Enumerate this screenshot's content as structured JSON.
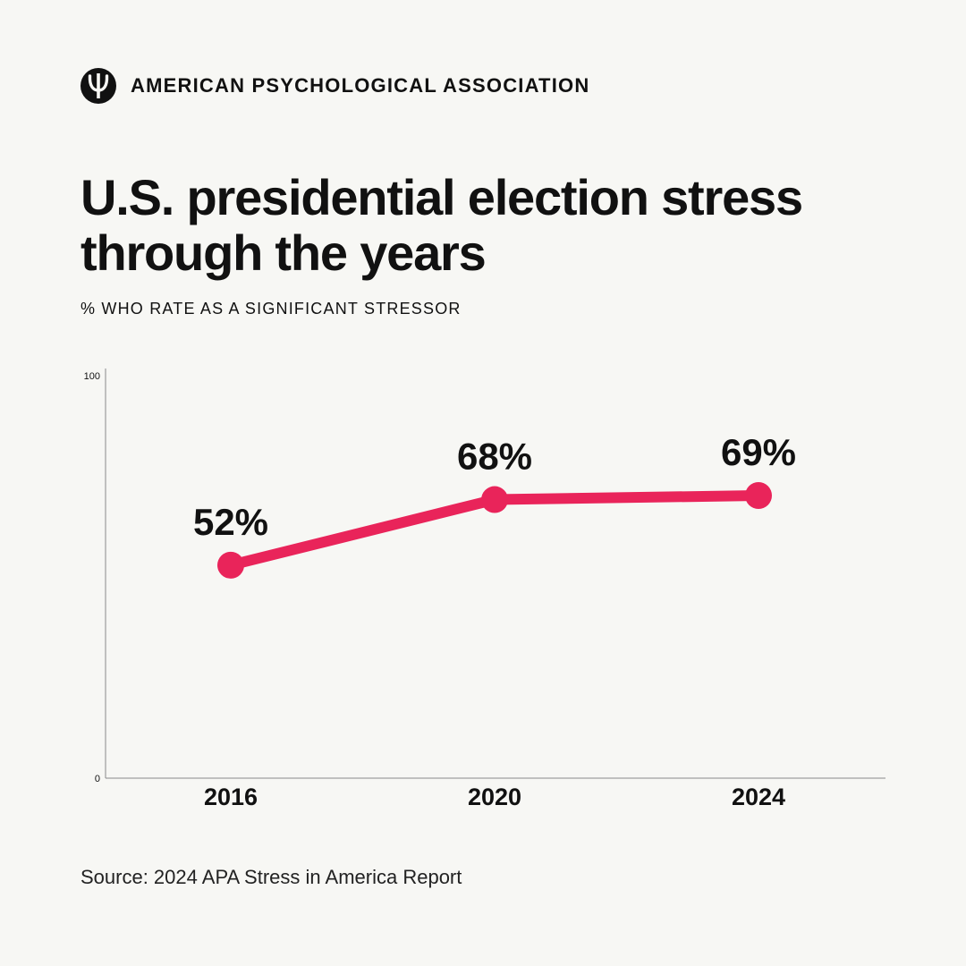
{
  "brand": {
    "name": "AMERICAN PSYCHOLOGICAL ASSOCIATION",
    "logo_icon": "psi-icon"
  },
  "colors": {
    "background": "#f7f7f4",
    "accent": "#e9245a",
    "text": "#111111"
  },
  "chart_data": {
    "type": "line",
    "title": "U.S. presidential election stress through the years",
    "subtitle": "% WHO RATE AS A SIGNIFICANT STRESSOR",
    "categories": [
      "2016",
      "2020",
      "2024"
    ],
    "series": [
      {
        "values": [
          52,
          68,
          69
        ],
        "labels": [
          "52%",
          "68%",
          "69%"
        ]
      }
    ],
    "ylim": [
      0,
      100
    ],
    "yticks": [
      "0",
      "100"
    ],
    "grid": false,
    "legend": "none"
  },
  "source": "Source: 2024 APA Stress in America Report"
}
